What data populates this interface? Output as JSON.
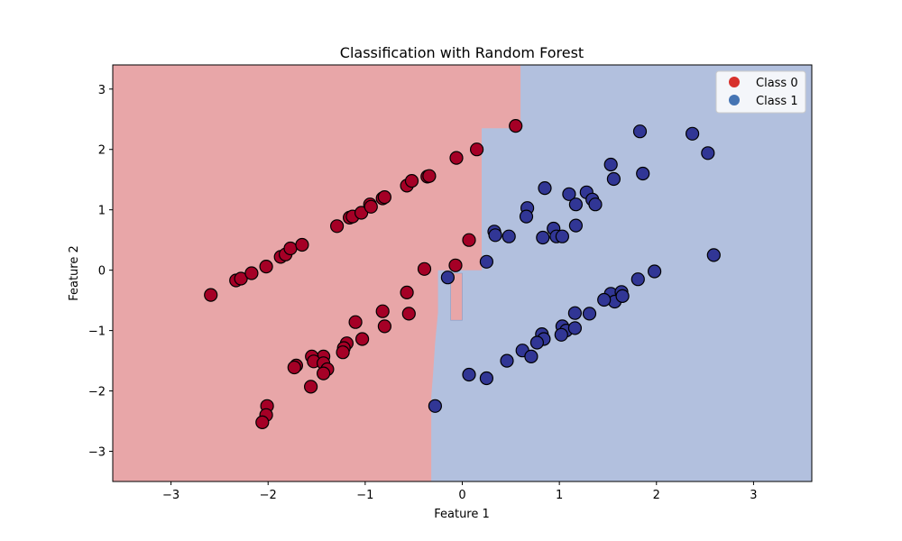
{
  "chart_data": {
    "type": "scatter",
    "title": "Classification with Random Forest",
    "xlabel": "Feature 1",
    "ylabel": "Feature 2",
    "xlim": [
      -3.6,
      3.6
    ],
    "ylim": [
      -3.5,
      3.4
    ],
    "xticks": [
      -3,
      -2,
      -1,
      0,
      1,
      2,
      3
    ],
    "yticks": [
      -3,
      -2,
      -1,
      0,
      1,
      2,
      3
    ],
    "xtick_labels": [
      "−3",
      "−2",
      "−1",
      "0",
      "1",
      "2",
      "3"
    ],
    "ytick_labels": [
      "−3",
      "−2",
      "−1",
      "0",
      "1",
      "2",
      "3"
    ],
    "grid": false,
    "legend_position": "top-right",
    "background": "decision regions",
    "region_colors": {
      "class_0": "#e8a6a8",
      "class_1": "#b2c0de"
    },
    "series": [
      {
        "name": "Class 0",
        "legend_color": "#d7312c",
        "marker_color": "#a50026",
        "points": [
          [
            -2.59,
            -0.41
          ],
          [
            -2.33,
            -0.17
          ],
          [
            -2.28,
            -0.14
          ],
          [
            -2.17,
            -0.05
          ],
          [
            -2.02,
            0.06
          ],
          [
            -1.87,
            0.22
          ],
          [
            -1.82,
            0.26
          ],
          [
            -1.77,
            0.36
          ],
          [
            -1.65,
            0.42
          ],
          [
            -1.29,
            0.73
          ],
          [
            -1.16,
            0.87
          ],
          [
            -1.13,
            0.89
          ],
          [
            -1.04,
            0.95
          ],
          [
            -0.95,
            1.09
          ],
          [
            -0.94,
            1.05
          ],
          [
            -0.82,
            1.19
          ],
          [
            -0.8,
            1.21
          ],
          [
            -0.57,
            1.4
          ],
          [
            -0.52,
            1.48
          ],
          [
            -0.36,
            1.55
          ],
          [
            -0.34,
            1.56
          ],
          [
            -0.06,
            1.86
          ],
          [
            0.15,
            2.0
          ],
          [
            0.55,
            2.39
          ],
          [
            0.07,
            0.5
          ],
          [
            -0.07,
            0.08
          ],
          [
            -0.39,
            0.02
          ],
          [
            -0.57,
            -0.37
          ],
          [
            -0.55,
            -0.72
          ],
          [
            -0.82,
            -0.68
          ],
          [
            -0.8,
            -0.93
          ],
          [
            -1.1,
            -0.86
          ],
          [
            -1.03,
            -1.14
          ],
          [
            -1.19,
            -1.21
          ],
          [
            -1.22,
            -1.29
          ],
          [
            -1.23,
            -1.36
          ],
          [
            -1.43,
            -1.43
          ],
          [
            -1.55,
            -1.43
          ],
          [
            -1.53,
            -1.51
          ],
          [
            -1.43,
            -1.54
          ],
          [
            -1.39,
            -1.64
          ],
          [
            -1.43,
            -1.71
          ],
          [
            -1.71,
            -1.58
          ],
          [
            -1.73,
            -1.61
          ],
          [
            -1.56,
            -1.93
          ],
          [
            -2.01,
            -2.25
          ],
          [
            -2.02,
            -2.4
          ],
          [
            -2.06,
            -2.52
          ]
        ]
      },
      {
        "name": "Class 1",
        "legend_color": "#4574b3",
        "marker_color": "#313695",
        "points": [
          [
            1.83,
            2.3
          ],
          [
            2.37,
            2.26
          ],
          [
            2.53,
            1.94
          ],
          [
            1.86,
            1.6
          ],
          [
            1.53,
            1.75
          ],
          [
            1.56,
            1.51
          ],
          [
            0.85,
            1.36
          ],
          [
            1.28,
            1.29
          ],
          [
            1.1,
            1.26
          ],
          [
            1.34,
            1.17
          ],
          [
            1.37,
            1.09
          ],
          [
            1.17,
            1.09
          ],
          [
            0.67,
            1.03
          ],
          [
            0.66,
            0.89
          ],
          [
            1.17,
            0.74
          ],
          [
            0.94,
            0.69
          ],
          [
            0.33,
            0.64
          ],
          [
            0.34,
            0.58
          ],
          [
            0.48,
            0.56
          ],
          [
            0.83,
            0.54
          ],
          [
            0.97,
            0.56
          ],
          [
            1.03,
            0.56
          ],
          [
            0.25,
            0.14
          ],
          [
            -0.15,
            -0.12
          ],
          [
            1.98,
            -0.02
          ],
          [
            1.81,
            -0.15
          ],
          [
            2.59,
            0.25
          ],
          [
            1.53,
            -0.39
          ],
          [
            1.64,
            -0.36
          ],
          [
            1.57,
            -0.52
          ],
          [
            1.46,
            -0.49
          ],
          [
            1.65,
            -0.43
          ],
          [
            1.16,
            -0.71
          ],
          [
            1.31,
            -0.72
          ],
          [
            1.03,
            -0.93
          ],
          [
            1.07,
            -1.0
          ],
          [
            1.16,
            -0.96
          ],
          [
            1.02,
            -1.07
          ],
          [
            0.82,
            -1.06
          ],
          [
            0.84,
            -1.14
          ],
          [
            0.77,
            -1.2
          ],
          [
            0.62,
            -1.33
          ],
          [
            0.71,
            -1.43
          ],
          [
            0.46,
            -1.5
          ],
          [
            0.07,
            -1.73
          ],
          [
            0.25,
            -1.79
          ],
          [
            -0.28,
            -2.25
          ]
        ]
      }
    ]
  }
}
